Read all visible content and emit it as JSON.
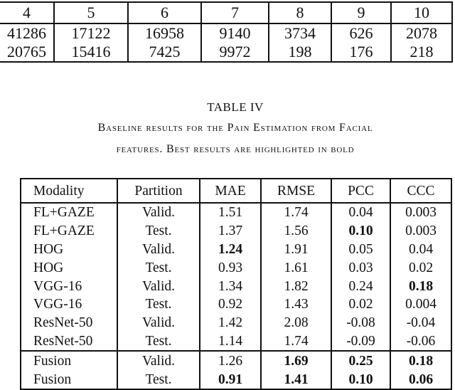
{
  "top_table": {
    "header": [
      "4",
      "5",
      "6",
      "7",
      "8",
      "9",
      "10"
    ],
    "rows": [
      [
        "41286",
        "17122",
        "16958",
        "9140",
        "3734",
        "626",
        "2078"
      ],
      [
        "20765",
        "15416",
        "7425",
        "9972",
        "198",
        "176",
        "218"
      ]
    ]
  },
  "caption": {
    "title": "TABLE IV",
    "line1": "Baseline results for the Pain Estimation from Facial",
    "line2": "features. Best results are highlighted in bold"
  },
  "table": {
    "header": [
      "Modality",
      "Partition",
      "MAE",
      "RMSE",
      "PCC",
      "CCC"
    ],
    "rows": [
      {
        "cells": [
          "FL+GAZE",
          "Valid.",
          "1.51",
          "1.74",
          "0.04",
          "0.003"
        ],
        "bold": []
      },
      {
        "cells": [
          "FL+GAZE",
          "Test.",
          "1.37",
          "1.56",
          "0.10",
          "0.003"
        ],
        "bold": [
          4
        ]
      },
      {
        "cells": [
          "HOG",
          "Valid.",
          "1.24",
          "1.91",
          "0.05",
          "0.04"
        ],
        "bold": [
          2
        ]
      },
      {
        "cells": [
          "HOG",
          "Test.",
          "0.93",
          "1.61",
          "0.03",
          "0.02"
        ],
        "bold": []
      },
      {
        "cells": [
          "VGG-16",
          "Valid.",
          "1.34",
          "1.82",
          "0.24",
          "0.18"
        ],
        "bold": [
          5
        ]
      },
      {
        "cells": [
          "VGG-16",
          "Test.",
          "0.92",
          "1.43",
          "0.02",
          "0.004"
        ],
        "bold": []
      },
      {
        "cells": [
          "ResNet-50",
          "Valid.",
          "1.42",
          "2.08",
          "-0.08",
          "-0.04"
        ],
        "bold": []
      },
      {
        "cells": [
          "ResNet-50",
          "Test.",
          "1.14",
          "1.74",
          "-0.09",
          "-0.06"
        ],
        "bold": []
      },
      {
        "cells": [
          "Fusion",
          "Valid.",
          "1.26",
          "1.69",
          "0.25",
          "0.18"
        ],
        "bold": [
          3,
          4,
          5
        ]
      },
      {
        "cells": [
          "Fusion",
          "Test.",
          "0.91",
          "1.41",
          "0.10",
          "0.06"
        ],
        "bold": [
          2,
          3,
          4,
          5
        ]
      }
    ]
  }
}
